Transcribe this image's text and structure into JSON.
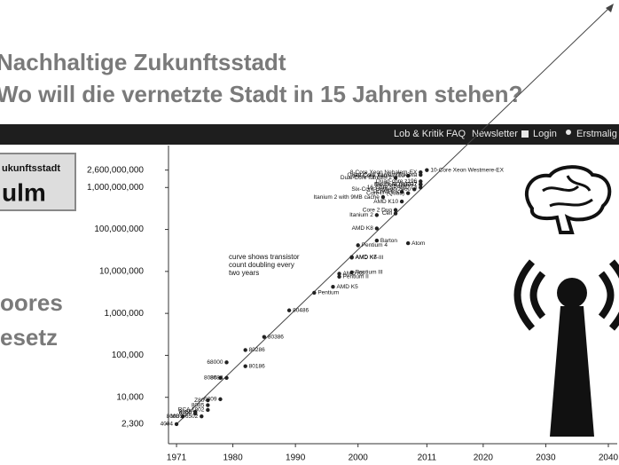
{
  "slide": {
    "title": [
      "Nachhaltige Zukunftsstadt",
      "Wo will die vernetzte Stadt in 15 Jahren stehen?"
    ],
    "nav": [
      "Lob & Kritik",
      "FAQ",
      "Newsletter",
      "Login",
      "Erstmalig a"
    ],
    "logo": [
      "ukunftsstadt",
      "ulm"
    ],
    "side_text": [
      "oores",
      "esetz"
    ]
  },
  "chart_data": {
    "type": "scatter",
    "log_scale_y": true,
    "color": "#222",
    "annotation": [
      "curve shows transistor",
      "count doubling every",
      "two years"
    ],
    "xlim": [
      1970,
      2040
    ],
    "xticks": [
      1971,
      1980,
      1990,
      2000,
      2011,
      2020,
      2030,
      2040
    ],
    "ylim": [
      1000,
      10000000000
    ],
    "yticks": [
      {
        "value": 2300,
        "label": "2,300"
      },
      {
        "value": 10000,
        "label": "10,000"
      },
      {
        "value": 100000,
        "label": "100,000"
      },
      {
        "value": 1000000,
        "label": "1,000,000"
      },
      {
        "value": 10000000,
        "label": "10,000,000"
      },
      {
        "value": 100000000,
        "label": "100,000,000"
      },
      {
        "value": 1000000000,
        "label": "1,000,000,000"
      },
      {
        "value": 2600000000,
        "label": "2,600,000,000"
      }
    ],
    "point_labels": [
      "4004",
      "8008",
      "8080",
      "RCA 1802",
      "MOS 6502",
      "6800",
      "Z80",
      "8085",
      "6809",
      "8086",
      "8088",
      "68000",
      "80186",
      "80286",
      "80386",
      "80486",
      "Pentium",
      "AMD K5",
      "Pentium II",
      "AMD K6",
      "Pentium III",
      "AMD K6-III",
      "AMD K7",
      "Pentium 4",
      "Barton",
      "Atom",
      "AMD K8",
      "Itanium 2",
      "Cell",
      "Core 2 Duo",
      "Itanium 2 with 9MB cache",
      "AMD K10",
      "POWER6",
      "Core i7 (Quad)",
      "Six-Core Opteron 2400",
      "Dual-Core Itanium 2",
      "Six-Core Xeon 7400",
      "Six-Core Core i7",
      "8-core POWER7",
      "Quad-core z196",
      "Quad-Core Itanium Tukwila",
      "8-Core Xeon Nehalem-EX",
      "16-Core SPARC T3",
      "10-Core Xeon Westmere-EX"
    ],
    "x": [
      1971,
      1972,
      1974,
      1976,
      1975,
      1974,
      1976,
      1976,
      1978,
      1978,
      1979,
      1979,
      1982,
      1982,
      1985,
      1989,
      1993,
      1996,
      1997,
      1997,
      1999,
      1999,
      1999,
      2000,
      2003,
      2008,
      2003,
      2003,
      2006,
      2006,
      2004,
      2007,
      2007,
      2008,
      2009,
      2006,
      2008,
      2010,
      2010,
      2010,
      2010,
      2010,
      2010,
      2011
    ],
    "values": [
      2300,
      3500,
      4500,
      5000,
      3510,
      4100,
      8500,
      6500,
      9000,
      29000,
      29000,
      68000,
      55000,
      134000,
      275000,
      1180000,
      3100000,
      4300000,
      7500000,
      8800000,
      9500000,
      21300000,
      22000000,
      42000000,
      54300000,
      47000000,
      105900000,
      220000000,
      241000000,
      291000000,
      592000000,
      463000000,
      789000000,
      731000000,
      904000000,
      1700000000,
      1900000000,
      1170000000,
      1200000000,
      1400000000,
      2000000000,
      2300000000,
      1000000000,
      2600000000
    ]
  }
}
